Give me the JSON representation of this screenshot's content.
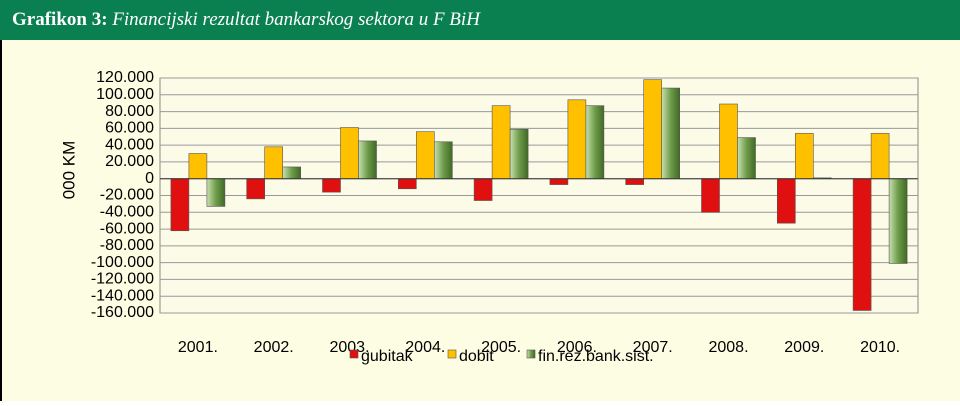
{
  "chart_data": {
    "type": "bar",
    "title_label": "Grafikon 3:",
    "title": "Financijski rezultat bankarskog sektora u  F BiH",
    "y_label": "000  KM",
    "categories": [
      "2001.",
      "2002.",
      "2003.",
      "2004.",
      "2005.",
      "2006.",
      "2007.",
      "2008.",
      "2009.",
      "2010."
    ],
    "series": [
      {
        "name": "gubitak",
        "color": "#e01010",
        "values": [
          -62,
          -24,
          -16,
          -12,
          -26,
          -7,
          -7,
          -40,
          -53,
          -157
        ]
      },
      {
        "name": "dobit",
        "color": "#ffc000",
        "values": [
          30,
          38,
          61,
          56,
          87,
          94,
          118,
          89,
          54,
          54
        ]
      },
      {
        "name": "fin.rez.bank.sist.",
        "color": "#5e8c3c",
        "values": [
          -33,
          14,
          45,
          44,
          59,
          87,
          108,
          49,
          1,
          -101
        ]
      }
    ],
    "ylim": [
      -160,
      120
    ],
    "yticks": [
      {
        "value": 120,
        "label": "120.000"
      },
      {
        "value": 100,
        "label": "100.000"
      },
      {
        "value": 80,
        "label": "80.000"
      },
      {
        "value": 60,
        "label": "60.000"
      },
      {
        "value": 40,
        "label": "40.000"
      },
      {
        "value": 20,
        "label": "20.000"
      },
      0,
      {
        "value": -20,
        "label": "-20.000"
      },
      {
        "value": -40,
        "label": "-40.000"
      },
      {
        "value": -60,
        "label": "-60.000"
      },
      {
        "value": -80,
        "label": "-80.000"
      },
      {
        "value": -100,
        "label": "-100.000"
      },
      {
        "value": -120,
        "label": "-120.000"
      },
      {
        "value": -140,
        "label": "-140.000"
      },
      {
        "value": -160,
        "label": "-160.000"
      }
    ],
    "grid": true
  }
}
